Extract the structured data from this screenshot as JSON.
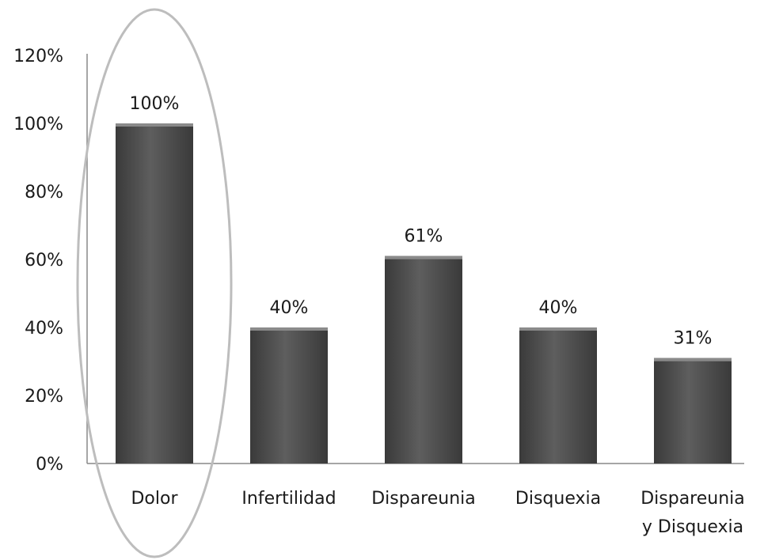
{
  "chart_data": {
    "type": "bar",
    "categories": [
      "Dolor",
      "Infertilidad",
      "Dispareunia",
      "Disquexia",
      "Dispareunia y Disquexia"
    ],
    "category_lines": [
      [
        "Dolor"
      ],
      [
        "Infertilidad"
      ],
      [
        "Dispareunia"
      ],
      [
        "Disquexia"
      ],
      [
        "Dispareunia",
        "y Disquexia"
      ]
    ],
    "values": [
      100,
      40,
      61,
      40,
      31
    ],
    "data_labels": [
      "100%",
      "40%",
      "61%",
      "40%",
      "31%"
    ],
    "ylim": [
      0,
      120
    ],
    "yticks": [
      0,
      20,
      40,
      60,
      80,
      100,
      120
    ],
    "ytick_labels": [
      "0%",
      "20%",
      "40%",
      "60%",
      "80%",
      "100%",
      "120%"
    ],
    "title": "",
    "xlabel": "",
    "ylabel": "",
    "grid": false,
    "legend": "none",
    "bar_color": "#555555",
    "highlight": {
      "category": "Dolor",
      "shape": "ellipse",
      "color": "#bdbdbd"
    }
  }
}
